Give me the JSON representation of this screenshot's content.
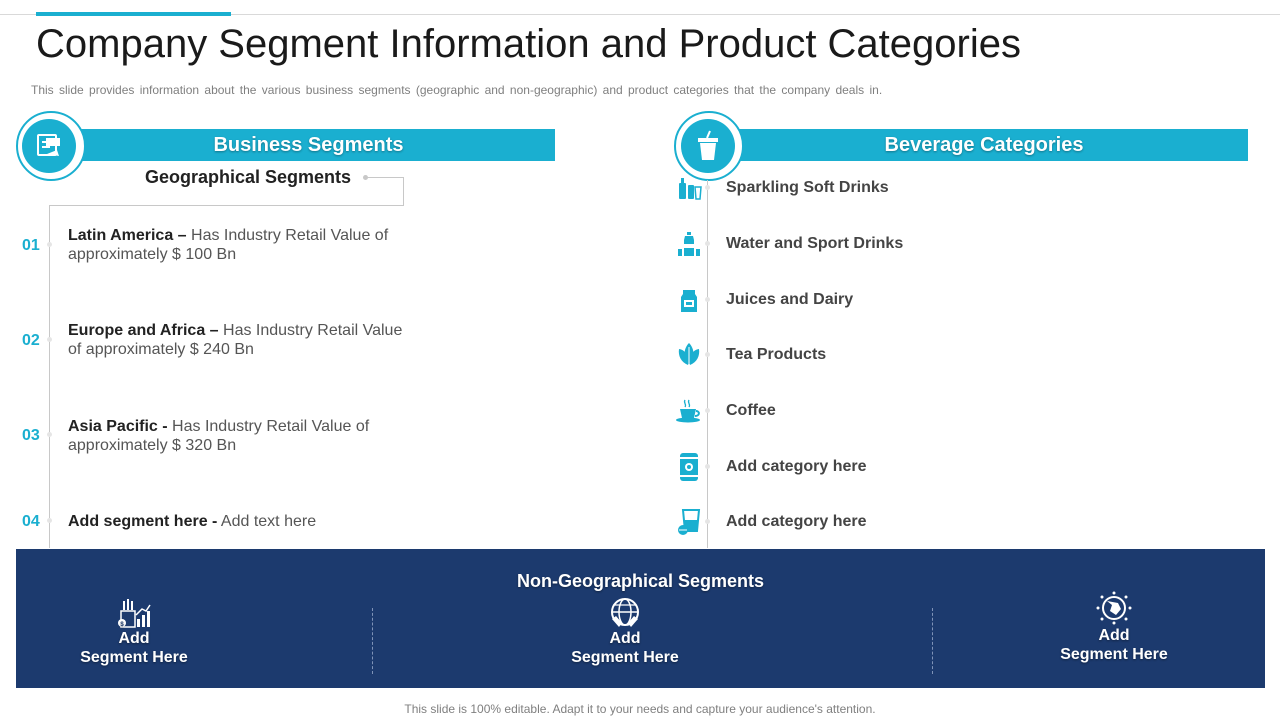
{
  "slide": {
    "title": "Company Segment Information and Product Categories",
    "subtitle": "This slide provides information about the various business segments (geographic and non-geographic) and product categories that the company deals in.",
    "footer": "This slide is 100% editable. Adapt it to your needs and capture your audience's attention."
  },
  "business_segments": {
    "header": "Business Segments",
    "icon": "presentation-board-icon",
    "geo_title": "Geographical Segments",
    "items": [
      {
        "num": "01",
        "name": "Latin America –",
        "text": " Has Industry  Retail Value of approximately $ 100 Bn"
      },
      {
        "num": "02",
        "name": "Europe and Africa –",
        "text": " Has Industry  Retail Value of approximately $ 240 Bn"
      },
      {
        "num": "03",
        "name": "Asia Pacific -",
        "text": " Has Industry  Retail Value of approximately $ 320 Bn"
      },
      {
        "num": "04",
        "name": "Add segment here -",
        "text": " Add text here"
      }
    ]
  },
  "beverage_categories": {
    "header": "Beverage Categories",
    "icon": "drink-cup-icon",
    "items": [
      {
        "label": "Sparkling Soft Drinks",
        "icon": "soft-drinks-icon"
      },
      {
        "label": "Water and Sport Drinks",
        "icon": "water-bottle-icon"
      },
      {
        "label": "Juices and Dairy",
        "icon": "juice-carton-icon"
      },
      {
        "label": "Tea Products",
        "icon": "tea-leaves-icon"
      },
      {
        "label": "Coffee",
        "icon": "coffee-cup-icon"
      },
      {
        "label": "Add category here",
        "icon": "can-icon"
      },
      {
        "label": "Add category here",
        "icon": "glass-icon"
      }
    ]
  },
  "non_geo": {
    "title": "Non-Geographical Segments",
    "items": [
      {
        "line1": "Add",
        "line2": "Segment Here",
        "icon": "factory-chart-icon"
      },
      {
        "line1": "Add",
        "line2": "Segment Here",
        "icon": "globe-hands-icon"
      },
      {
        "line1": "Add",
        "line2": "Segment Here",
        "icon": "globe-network-icon"
      }
    ]
  },
  "colors": {
    "accent": "#1aafd0",
    "panel": "#1c3a6e"
  }
}
